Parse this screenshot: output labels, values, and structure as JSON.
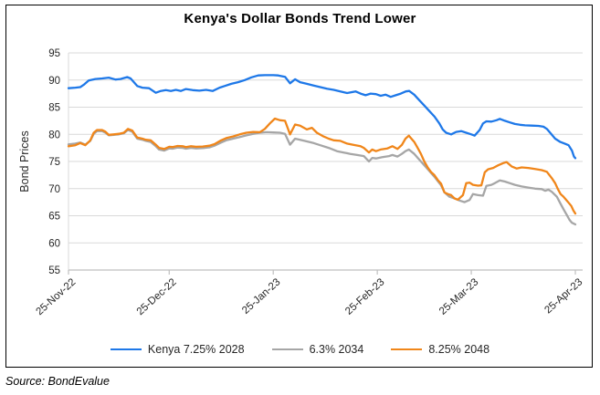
{
  "chart_data": {
    "type": "line",
    "title": "Kenya's Dollar Bonds Trend Lower",
    "ylabel": "Bond Prices",
    "source": "Source: BondEvalue",
    "ylim": [
      55,
      95
    ],
    "ytick_step": 5,
    "grid": true,
    "legend_position": "bottom",
    "x_unit": "days-since-25-Nov-22",
    "x_domain": [
      0,
      151
    ],
    "x_ticks": [
      {
        "pos": 0,
        "label": "25-Nov-22"
      },
      {
        "pos": 30,
        "label": "25-Dec-22"
      },
      {
        "pos": 61,
        "label": "25-Jan-23"
      },
      {
        "pos": 92,
        "label": "25-Feb-23"
      },
      {
        "pos": 120,
        "label": "25-Mar-23"
      },
      {
        "pos": 151,
        "label": "25-Apr-23"
      }
    ],
    "series": [
      {
        "name": "Kenya 7.25% 2028",
        "color": "#1E78E8",
        "points": [
          [
            0,
            88.5
          ],
          [
            2,
            88.6
          ],
          [
            3.5,
            88.7
          ],
          [
            4.5,
            89.1
          ],
          [
            6,
            89.9
          ],
          [
            8,
            90.2
          ],
          [
            10,
            90.3
          ],
          [
            12,
            90.45
          ],
          [
            14,
            90.1
          ],
          [
            15.5,
            90.2
          ],
          [
            17.5,
            90.55
          ],
          [
            18.5,
            90.3
          ],
          [
            20.5,
            88.9
          ],
          [
            22,
            88.6
          ],
          [
            24,
            88.5
          ],
          [
            26,
            87.65
          ],
          [
            27.5,
            88.0
          ],
          [
            29,
            88.15
          ],
          [
            30.5,
            88.0
          ],
          [
            32,
            88.2
          ],
          [
            33.5,
            88.0
          ],
          [
            35,
            88.35
          ],
          [
            37,
            88.15
          ],
          [
            39,
            88.05
          ],
          [
            41,
            88.2
          ],
          [
            43,
            88.0
          ],
          [
            45,
            88.6
          ],
          [
            46.5,
            88.9
          ],
          [
            48.5,
            89.3
          ],
          [
            50.5,
            89.6
          ],
          [
            52.5,
            90.0
          ],
          [
            54.5,
            90.5
          ],
          [
            56.5,
            90.85
          ],
          [
            58.5,
            90.9
          ],
          [
            61,
            90.9
          ],
          [
            62.5,
            90.85
          ],
          [
            64.5,
            90.6
          ],
          [
            66,
            89.4
          ],
          [
            67.5,
            90.15
          ],
          [
            69,
            89.6
          ],
          [
            71,
            89.3
          ],
          [
            73,
            89.0
          ],
          [
            75,
            88.7
          ],
          [
            77,
            88.4
          ],
          [
            79,
            88.2
          ],
          [
            81,
            87.9
          ],
          [
            83,
            87.6
          ],
          [
            85.5,
            87.9
          ],
          [
            87,
            87.5
          ],
          [
            88.5,
            87.2
          ],
          [
            90,
            87.5
          ],
          [
            91.6,
            87.4
          ],
          [
            93,
            87.1
          ],
          [
            94.5,
            87.3
          ],
          [
            96,
            86.9
          ],
          [
            97.5,
            87.2
          ],
          [
            99,
            87.5
          ],
          [
            100.5,
            87.9
          ],
          [
            101.5,
            88.0
          ],
          [
            103,
            87.3
          ],
          [
            104.5,
            86.3
          ],
          [
            106,
            85.3
          ],
          [
            107.5,
            84.3
          ],
          [
            109,
            83.3
          ],
          [
            110.5,
            82.0
          ],
          [
            111.5,
            80.9
          ],
          [
            112.5,
            80.3
          ],
          [
            114,
            80.0
          ],
          [
            115.5,
            80.45
          ],
          [
            117,
            80.6
          ],
          [
            118.5,
            80.3
          ],
          [
            120,
            80.0
          ],
          [
            121,
            79.75
          ],
          [
            122.5,
            80.8
          ],
          [
            123.5,
            82.0
          ],
          [
            124.5,
            82.4
          ],
          [
            126,
            82.35
          ],
          [
            127.5,
            82.6
          ],
          [
            128.5,
            82.85
          ],
          [
            130,
            82.5
          ],
          [
            131.5,
            82.2
          ],
          [
            133,
            81.9
          ],
          [
            134.5,
            81.75
          ],
          [
            136,
            81.65
          ],
          [
            138,
            81.6
          ],
          [
            140,
            81.55
          ],
          [
            141.5,
            81.4
          ],
          [
            142.5,
            81.0
          ],
          [
            143.5,
            80.3
          ],
          [
            145,
            79.2
          ],
          [
            146.5,
            78.6
          ],
          [
            148,
            78.25
          ],
          [
            149,
            78.0
          ],
          [
            150,
            77.0
          ],
          [
            150.6,
            75.9
          ],
          [
            151,
            75.6
          ]
        ]
      },
      {
        "name": "6.3% 2034",
        "color": "#A6A6A6",
        "points": [
          [
            0,
            78.15
          ],
          [
            2,
            78.3
          ],
          [
            3.5,
            78.5
          ],
          [
            5,
            78.1
          ],
          [
            6.5,
            78.8
          ],
          [
            7.5,
            80.1
          ],
          [
            8.5,
            80.6
          ],
          [
            10,
            80.6
          ],
          [
            11,
            80.3
          ],
          [
            12,
            79.8
          ],
          [
            13.5,
            79.9
          ],
          [
            15,
            80.0
          ],
          [
            16.5,
            80.2
          ],
          [
            17.7,
            80.8
          ],
          [
            19,
            80.5
          ],
          [
            20.5,
            79.2
          ],
          [
            22,
            79.0
          ],
          [
            23,
            78.8
          ],
          [
            24.5,
            78.6
          ],
          [
            26,
            77.8
          ],
          [
            27,
            77.2
          ],
          [
            28.5,
            77.0
          ],
          [
            30,
            77.4
          ],
          [
            31,
            77.35
          ],
          [
            32.5,
            77.55
          ],
          [
            34,
            77.5
          ],
          [
            35,
            77.35
          ],
          [
            36.5,
            77.5
          ],
          [
            38,
            77.4
          ],
          [
            40,
            77.45
          ],
          [
            42,
            77.6
          ],
          [
            43.5,
            77.9
          ],
          [
            45.5,
            78.5
          ],
          [
            47,
            78.9
          ],
          [
            49,
            79.2
          ],
          [
            51,
            79.5
          ],
          [
            53,
            79.8
          ],
          [
            55,
            80.1
          ],
          [
            57,
            80.3
          ],
          [
            59,
            80.4
          ],
          [
            61,
            80.35
          ],
          [
            63,
            80.3
          ],
          [
            64.5,
            80.1
          ],
          [
            66,
            78.1
          ],
          [
            67.5,
            79.2
          ],
          [
            69,
            79.0
          ],
          [
            71,
            78.7
          ],
          [
            73,
            78.4
          ],
          [
            75,
            78.0
          ],
          [
            77.5,
            77.5
          ],
          [
            80,
            76.9
          ],
          [
            82,
            76.65
          ],
          [
            84,
            76.4
          ],
          [
            86,
            76.2
          ],
          [
            88,
            76.0
          ],
          [
            89.5,
            75.0
          ],
          [
            90.5,
            75.65
          ],
          [
            91.6,
            75.55
          ],
          [
            93.5,
            75.8
          ],
          [
            95.5,
            76.0
          ],
          [
            96.5,
            76.2
          ],
          [
            98,
            75.9
          ],
          [
            99.3,
            76.4
          ],
          [
            100.4,
            76.9
          ],
          [
            101.4,
            77.2
          ],
          [
            103,
            76.4
          ],
          [
            105,
            75.0
          ],
          [
            107,
            73.6
          ],
          [
            109,
            72.2
          ],
          [
            111,
            70.6
          ],
          [
            112,
            69.3
          ],
          [
            113.5,
            68.5
          ],
          [
            115,
            68.2
          ],
          [
            116.5,
            67.8
          ],
          [
            118,
            67.5
          ],
          [
            119.5,
            67.9
          ],
          [
            120.5,
            69.0
          ],
          [
            122,
            68.8
          ],
          [
            123.5,
            68.7
          ],
          [
            124.5,
            70.5
          ],
          [
            126,
            70.7
          ],
          [
            127,
            71.0
          ],
          [
            128.5,
            71.5
          ],
          [
            130,
            71.3
          ],
          [
            131.5,
            71.0
          ],
          [
            133,
            70.7
          ],
          [
            135,
            70.4
          ],
          [
            137,
            70.2
          ],
          [
            139,
            70.0
          ],
          [
            141,
            69.9
          ],
          [
            142,
            69.6
          ],
          [
            143,
            69.8
          ],
          [
            144,
            69.4
          ],
          [
            145.5,
            68.5
          ],
          [
            146.5,
            67.3
          ],
          [
            147.5,
            66.2
          ],
          [
            148.5,
            65.1
          ],
          [
            149.3,
            64.2
          ],
          [
            150,
            63.7
          ],
          [
            151,
            63.4
          ]
        ]
      },
      {
        "name": "8.25% 2048",
        "color": "#F0861A",
        "points": [
          [
            0,
            77.8
          ],
          [
            2,
            78.0
          ],
          [
            3.5,
            78.4
          ],
          [
            5,
            78.0
          ],
          [
            6.5,
            78.9
          ],
          [
            7.5,
            80.3
          ],
          [
            8.5,
            80.8
          ],
          [
            10,
            80.8
          ],
          [
            11,
            80.5
          ],
          [
            12,
            79.9
          ],
          [
            13.5,
            80.0
          ],
          [
            15,
            80.1
          ],
          [
            16.5,
            80.3
          ],
          [
            17.7,
            81.0
          ],
          [
            19,
            80.7
          ],
          [
            20.5,
            79.4
          ],
          [
            22,
            79.2
          ],
          [
            23,
            79.0
          ],
          [
            24.5,
            78.9
          ],
          [
            26,
            78.1
          ],
          [
            27,
            77.5
          ],
          [
            28.5,
            77.3
          ],
          [
            30,
            77.7
          ],
          [
            31,
            77.65
          ],
          [
            32.5,
            77.85
          ],
          [
            34,
            77.8
          ],
          [
            35,
            77.65
          ],
          [
            36.5,
            77.8
          ],
          [
            38,
            77.7
          ],
          [
            40,
            77.75
          ],
          [
            42,
            77.9
          ],
          [
            43.5,
            78.2
          ],
          [
            45.5,
            78.9
          ],
          [
            47,
            79.3
          ],
          [
            49,
            79.6
          ],
          [
            51,
            80.0
          ],
          [
            53,
            80.3
          ],
          [
            55,
            80.45
          ],
          [
            57,
            80.4
          ],
          [
            58.5,
            81.0
          ],
          [
            60,
            82.0
          ],
          [
            61.5,
            82.9
          ],
          [
            63,
            82.6
          ],
          [
            64.5,
            82.5
          ],
          [
            66,
            80.0
          ],
          [
            67.5,
            81.8
          ],
          [
            69,
            81.6
          ],
          [
            71,
            80.9
          ],
          [
            72.5,
            81.2
          ],
          [
            74,
            80.3
          ],
          [
            76,
            79.6
          ],
          [
            77.5,
            79.2
          ],
          [
            79,
            78.9
          ],
          [
            81,
            78.8
          ],
          [
            83,
            78.3
          ],
          [
            85,
            78.05
          ],
          [
            87,
            77.8
          ],
          [
            88,
            77.5
          ],
          [
            89.5,
            76.65
          ],
          [
            90.5,
            77.2
          ],
          [
            91.6,
            76.9
          ],
          [
            93,
            77.2
          ],
          [
            95,
            77.4
          ],
          [
            96.5,
            77.8
          ],
          [
            98,
            77.3
          ],
          [
            99.3,
            78.05
          ],
          [
            100.4,
            79.2
          ],
          [
            101.4,
            79.75
          ],
          [
            103,
            78.6
          ],
          [
            104,
            77.5
          ],
          [
            105,
            76.4
          ],
          [
            106,
            75.0
          ],
          [
            107,
            73.9
          ],
          [
            108,
            73.05
          ],
          [
            109,
            72.5
          ],
          [
            110,
            71.6
          ],
          [
            111,
            70.9
          ],
          [
            112,
            69.3
          ],
          [
            113,
            69.0
          ],
          [
            114,
            68.8
          ],
          [
            115,
            68.2
          ],
          [
            116,
            67.95
          ],
          [
            117.5,
            68.8
          ],
          [
            118.5,
            71.0
          ],
          [
            119.5,
            71.1
          ],
          [
            120.5,
            70.7
          ],
          [
            122,
            70.55
          ],
          [
            123,
            70.6
          ],
          [
            124,
            73.0
          ],
          [
            125,
            73.55
          ],
          [
            126.5,
            73.8
          ],
          [
            128,
            74.3
          ],
          [
            129.5,
            74.7
          ],
          [
            130.5,
            74.9
          ],
          [
            132,
            74.1
          ],
          [
            133.5,
            73.7
          ],
          [
            135,
            73.9
          ],
          [
            137,
            73.8
          ],
          [
            139,
            73.6
          ],
          [
            141,
            73.4
          ],
          [
            142.5,
            73.1
          ],
          [
            144,
            71.9
          ],
          [
            145,
            71.0
          ],
          [
            145.8,
            69.9
          ],
          [
            146.6,
            69.0
          ],
          [
            147.5,
            68.5
          ],
          [
            148.3,
            67.9
          ],
          [
            149,
            67.4
          ],
          [
            149.8,
            66.8
          ],
          [
            150.4,
            66.0
          ],
          [
            151,
            65.4
          ]
        ]
      }
    ],
    "colors": {
      "gridline": "#D9D9D9",
      "axis": "#BFBFBF",
      "text": "#262626"
    }
  }
}
